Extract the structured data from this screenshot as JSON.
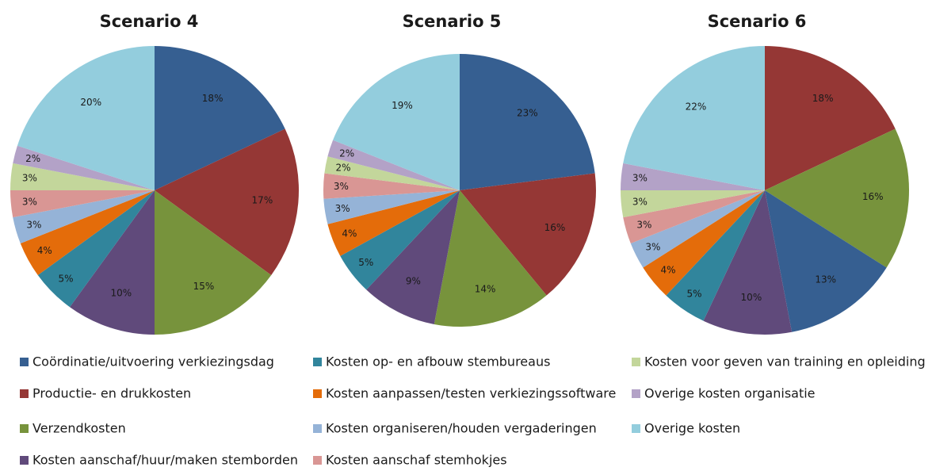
{
  "chart_data": [
    {
      "type": "pie",
      "title": "Scenario 4",
      "categories": [
        "Coördinatie/uitvoering verkiezingsdag",
        "Productie- en drukkosten",
        "Verzendkosten",
        "Kosten aanschaf/huur/maken stemborden",
        "Kosten op- en afbouw stembureaus",
        "Kosten aanpassen/testen verkiezingssoftware",
        "Kosten organiseren/houden vergaderingen",
        "Kosten aanschaf stemhokjes",
        "Kosten voor geven van training en opleiding",
        "Overige kosten organisatie",
        "Overige kosten"
      ],
      "values": [
        18,
        17,
        15,
        10,
        5,
        4,
        3,
        3,
        3,
        2,
        20
      ],
      "value_labels": [
        "18%",
        "17%",
        "15%",
        "10%",
        "5%",
        "4%",
        "3%",
        "3%",
        "3%",
        "2%",
        "20%"
      ],
      "colors": [
        "#365f91",
        "#953735",
        "#77933c",
        "#604a7b",
        "#31859c",
        "#e46c0a",
        "#95b3d7",
        "#d99694",
        "#c3d69b",
        "#b3a2c7",
        "#93cddd"
      ]
    },
    {
      "type": "pie",
      "title": "Scenario 5",
      "categories": [
        "Coördinatie/uitvoering verkiezingsdag",
        "Productie- en drukkosten",
        "Verzendkosten",
        "Kosten aanschaf/huur/maken stemborden",
        "Kosten op- en afbouw stembureaus",
        "Kosten aanpassen/testen verkiezingssoftware",
        "Kosten organiseren/houden vergaderingen",
        "Kosten aanschaf stemhokjes",
        "Kosten voor geven van training en opleiding",
        "Overige kosten organisatie",
        "Overige kosten"
      ],
      "values": [
        23,
        16,
        14,
        9,
        5,
        4,
        3,
        3,
        2,
        2,
        19
      ],
      "value_labels": [
        "23%",
        "16%",
        "14%",
        "9%",
        "5%",
        "4%",
        "3%",
        "3%",
        "2%",
        "2%",
        "19%"
      ],
      "colors": [
        "#365f91",
        "#953735",
        "#77933c",
        "#604a7b",
        "#31859c",
        "#e46c0a",
        "#95b3d7",
        "#d99694",
        "#c3d69b",
        "#b3a2c7",
        "#93cddd"
      ]
    },
    {
      "type": "pie",
      "title": "Scenario 6",
      "categories": [
        "Productie- en drukkosten",
        "Verzendkosten",
        "Coördinatie/uitvoering verkiezingsdag",
        "Kosten aanschaf/huur/maken stemborden",
        "Kosten op- en afbouw stembureaus",
        "Kosten aanpassen/testen verkiezingssoftware",
        "Kosten organiseren/houden vergaderingen",
        "Kosten aanschaf stemhokjes",
        "Kosten voor geven van training en opleiding",
        "Overige kosten organisatie",
        "Overige kosten"
      ],
      "values": [
        18,
        16,
        13,
        10,
        5,
        4,
        3,
        3,
        3,
        3,
        22
      ],
      "value_labels": [
        "18%",
        "16%",
        "13%",
        "10%",
        "5%",
        "4%",
        "3%",
        "3%",
        "3%",
        "3%",
        "22%"
      ],
      "colors": [
        "#953735",
        "#77933c",
        "#365f91",
        "#604a7b",
        "#31859c",
        "#e46c0a",
        "#95b3d7",
        "#d99694",
        "#c3d69b",
        "#b3a2c7",
        "#93cddd"
      ]
    }
  ]
}
